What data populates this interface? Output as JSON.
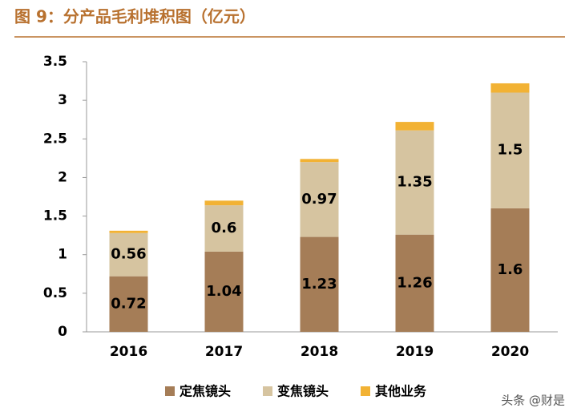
{
  "title": "图 9：分产品毛利堆积图（亿元）",
  "watermark": "头条 @财是",
  "chart_data": {
    "type": "stacked-bar",
    "categories": [
      "2016",
      "2017",
      "2018",
      "2019",
      "2020"
    ],
    "series": [
      {
        "name": "定焦镜头",
        "color": "#a57d57",
        "values": [
          0.72,
          1.04,
          1.23,
          1.26,
          1.6
        ],
        "show_labels": true
      },
      {
        "name": "变焦镜头",
        "color": "#d6c4a0",
        "values": [
          0.56,
          0.6,
          0.97,
          1.35,
          1.5
        ],
        "show_labels": true
      },
      {
        "name": "其他业务",
        "color": "#f2b234",
        "values": [
          0.03,
          0.06,
          0.04,
          0.11,
          0.12
        ],
        "show_labels": false
      }
    ],
    "ylim": [
      0,
      3.5
    ],
    "yticks": [
      0,
      0.5,
      1,
      1.5,
      2,
      2.5,
      3,
      3.5
    ],
    "grid": false,
    "legend": "bottom"
  }
}
